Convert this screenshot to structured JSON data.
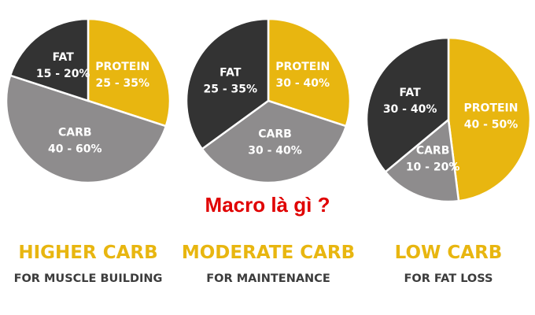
{
  "overlay_text": "Macro là gì ?",
  "colors": {
    "protein": "#e8b610",
    "fat": "#333333",
    "carb": "#8e8c8d",
    "title": "#e8b610",
    "subtitle": "#3c3c3c",
    "slice_label_light": "#ffffff",
    "slice_label_dark": "#2a2a2a",
    "overlay": "#e00000"
  },
  "chart_data": [
    {
      "type": "pie",
      "title": "HIGHER CARB",
      "subtitle": "FOR MUSCLE BUILDING",
      "slices": [
        {
          "name": "PROTEIN",
          "range": "25 - 35%",
          "value": 30,
          "color_key": "protein"
        },
        {
          "name": "CARB",
          "range": "40 - 60%",
          "value": 50,
          "color_key": "carb"
        },
        {
          "name": "FAT",
          "range": "15 - 20%",
          "value": 20,
          "color_key": "fat"
        }
      ]
    },
    {
      "type": "pie",
      "title": "MODERATE CARB",
      "subtitle": "FOR MAINTENANCE",
      "slices": [
        {
          "name": "PROTEIN",
          "range": "30 - 40%",
          "value": 30,
          "color_key": "protein"
        },
        {
          "name": "CARB",
          "range": "30 - 40%",
          "value": 35,
          "color_key": "carb"
        },
        {
          "name": "FAT",
          "range": "25 - 35%",
          "value": 35,
          "color_key": "fat"
        }
      ]
    },
    {
      "type": "pie",
      "title": "LOW CARB",
      "subtitle": "FOR FAT LOSS",
      "slices": [
        {
          "name": "PROTEIN",
          "range": "40 - 50%",
          "value": 48,
          "color_key": "protein"
        },
        {
          "name": "CARB",
          "range": "10 - 20%",
          "value": 16,
          "color_key": "carb"
        },
        {
          "name": "FAT",
          "range": "30 - 40%",
          "value": 36,
          "color_key": "fat"
        }
      ]
    }
  ]
}
